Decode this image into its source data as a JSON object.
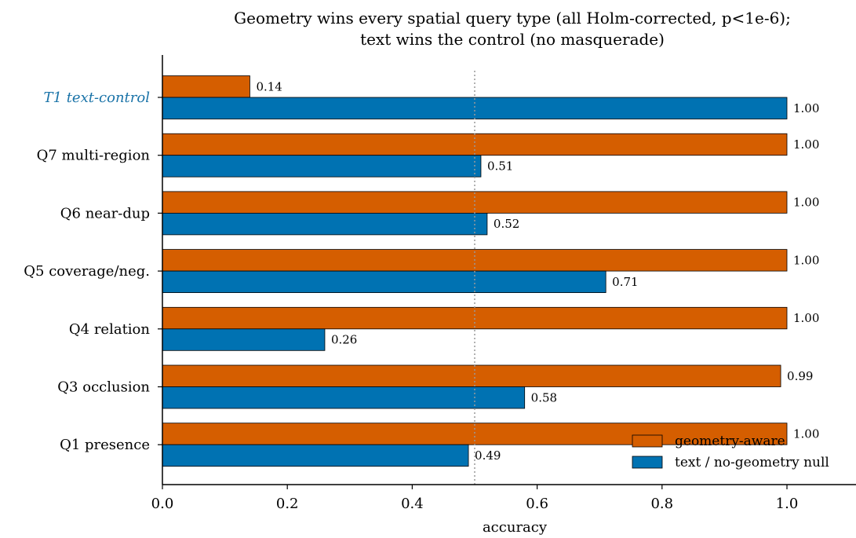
{
  "chart_data": {
    "type": "bar",
    "orientation": "horizontal",
    "title": "Geometry wins every spatial query type (all Holm-corrected, p<1e-6);\ntext wins the control (no masquerade)",
    "xlabel": "accuracy",
    "ylabel": "",
    "xlim": [
      0,
      1.1
    ],
    "xticks": [
      0.0,
      0.2,
      0.4,
      0.6,
      0.8,
      1.0
    ],
    "xtick_labels": [
      "0.0",
      "0.2",
      "0.4",
      "0.6",
      "0.8",
      "1.0"
    ],
    "reference_line": {
      "x": 0.5,
      "style": "dotted",
      "color": "#999999"
    },
    "categories": [
      "T1 text-control",
      "Q7 multi-region",
      "Q6 near-dup",
      "Q5 coverage/neg.",
      "Q4 relation",
      "Q3 occlusion",
      "Q1 presence"
    ],
    "highlight_category": {
      "label": "T1 text-control",
      "color": "#1a73a8",
      "italic": true
    },
    "series": [
      {
        "name": "geometry-aware",
        "color": "#d55e00",
        "values": [
          0.14,
          1.0,
          1.0,
          1.0,
          1.0,
          0.99,
          1.0
        ],
        "labels": [
          "0.14",
          "1.00",
          "1.00",
          "1.00",
          "1.00",
          "0.99",
          "1.00"
        ]
      },
      {
        "name": "text / no-geometry null",
        "color": "#0072b2",
        "values": [
          1.0,
          0.51,
          0.52,
          0.71,
          0.26,
          0.58,
          0.49
        ],
        "labels": [
          "1.00",
          "0.51",
          "0.52",
          "0.71",
          "0.26",
          "0.58",
          "0.49"
        ]
      }
    ],
    "legend": {
      "placement": "bottom-right"
    },
    "grid": false
  }
}
